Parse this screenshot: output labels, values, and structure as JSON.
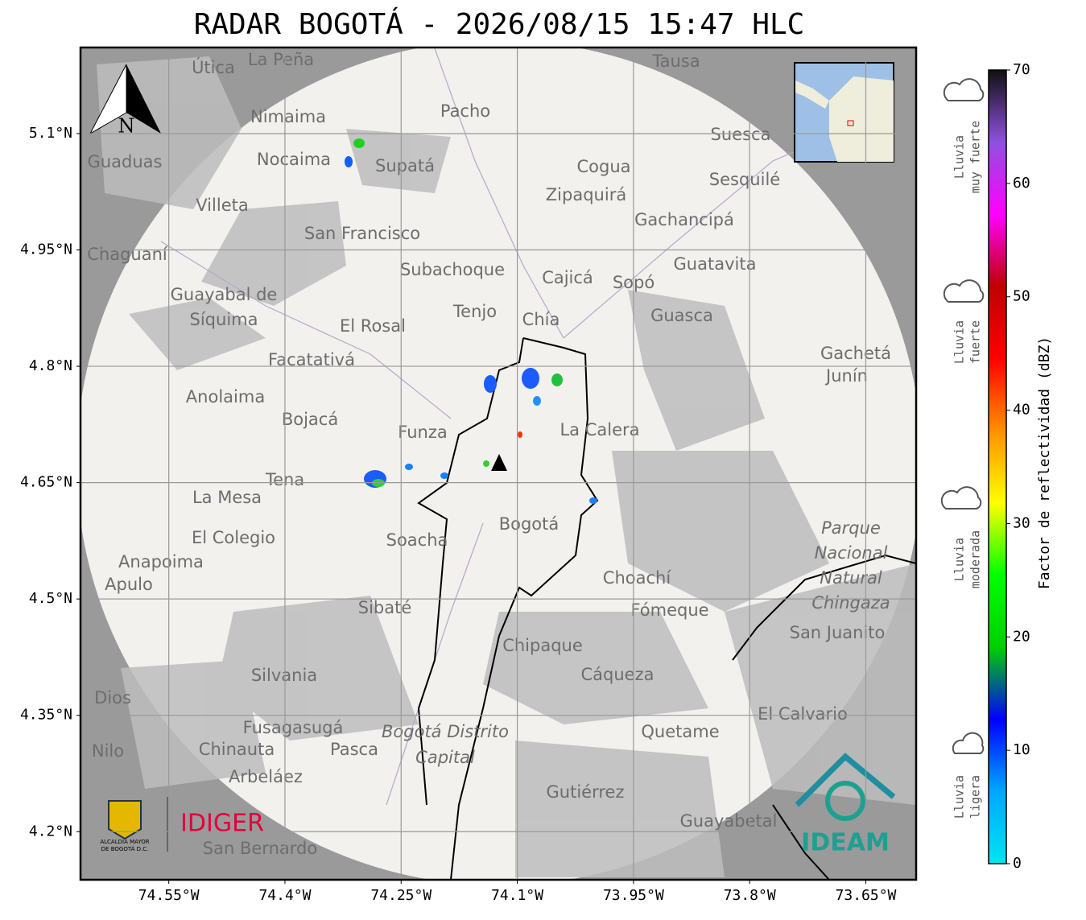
{
  "title": "RADAR BOGOTÁ - 2026/08/15 15:47 HLC",
  "map": {
    "xlim": [
      -74.664,
      -73.585
    ],
    "ylim": [
      4.138,
      5.211
    ],
    "grid": true,
    "xticks": [
      {
        "value": -74.55,
        "label": "74.55°W"
      },
      {
        "value": -74.4,
        "label": "74.4°W"
      },
      {
        "value": -74.25,
        "label": "74.25°W"
      },
      {
        "value": -74.1,
        "label": "74.1°W"
      },
      {
        "value": -73.95,
        "label": "73.95°W"
      },
      {
        "value": -73.8,
        "label": "73.8°W"
      },
      {
        "value": -73.65,
        "label": "73.65°W"
      }
    ],
    "yticks": [
      {
        "value": 5.1,
        "label": "5.1°N"
      },
      {
        "value": 4.95,
        "label": "4.95°N"
      },
      {
        "value": 4.8,
        "label": "4.8°N"
      },
      {
        "value": 4.65,
        "label": "4.65°N"
      },
      {
        "value": 4.5,
        "label": "4.5°N"
      },
      {
        "value": 4.35,
        "label": "4.35°N"
      },
      {
        "value": 4.2,
        "label": "4.2°N"
      }
    ],
    "places": [
      "La Peña",
      "Útica",
      "Tausa",
      "Pacho",
      "Nimaima",
      "Suesca",
      "Nocaima",
      "Supatá",
      "Guaduas",
      "Cogua",
      "Zipaquirá",
      "Sesquilé",
      "Villeta",
      "Gachancipá",
      "San Francisco",
      "Chaguaní",
      "Guatavita",
      "Subachoque",
      "Cajicá",
      "Sopó",
      "Guayabal de",
      "Síquima",
      "Tenjo",
      "Chía",
      "Guasca",
      "El Rosal",
      "Facatativá",
      "Gachetá",
      "Junín",
      "Anolaima",
      "Bojacá",
      "Funza",
      "La Calera",
      "Tena",
      "La Mesa",
      "Bogotá",
      "Soacha",
      "Parque",
      "Nacional",
      "Natural",
      "Chingaza",
      "El Colegio",
      "Anapoima",
      "Apulo",
      "Choachí",
      "Sibaté",
      "Fómeque",
      "San Juanito",
      "Chipaque",
      "Silvania",
      "Cáqueza",
      "El Calvario",
      "Fusagasugá",
      "Quetame",
      "Bogotá Distrito",
      "Capital",
      "Nilo",
      "Chinauta",
      "Pasca",
      "Arbeláez",
      "Gutiérrez",
      "Guayabetal",
      "San Bernardo",
      "Dios"
    ]
  },
  "colorbar": {
    "label": "Factor de reflectividad (dBZ)",
    "lim": [
      0,
      70
    ],
    "ticks": [
      0,
      10,
      20,
      30,
      40,
      50,
      60,
      70
    ],
    "colormap": [
      "#00e5f0",
      "#00a8ff",
      "#0000ff",
      "#00d000",
      "#00ff00",
      "#ffff00",
      "#ff9000",
      "#ff0000",
      "#c00000",
      "#ff00ff",
      "#9050e0",
      "#101010"
    ]
  },
  "rain_levels": [
    [
      "Lluvia",
      "ligera"
    ],
    [
      "Lluvia",
      "moderada"
    ],
    [
      "Lluvia",
      "fuerte"
    ],
    [
      "Lluvia",
      "muy fuerte"
    ]
  ],
  "north": "N",
  "logos": {
    "alcaldia": [
      "ALCALDÍA MAYOR",
      "DE BOGOTÁ D.C."
    ],
    "idiger": "IDIGER",
    "ideam": "IDEAM"
  }
}
